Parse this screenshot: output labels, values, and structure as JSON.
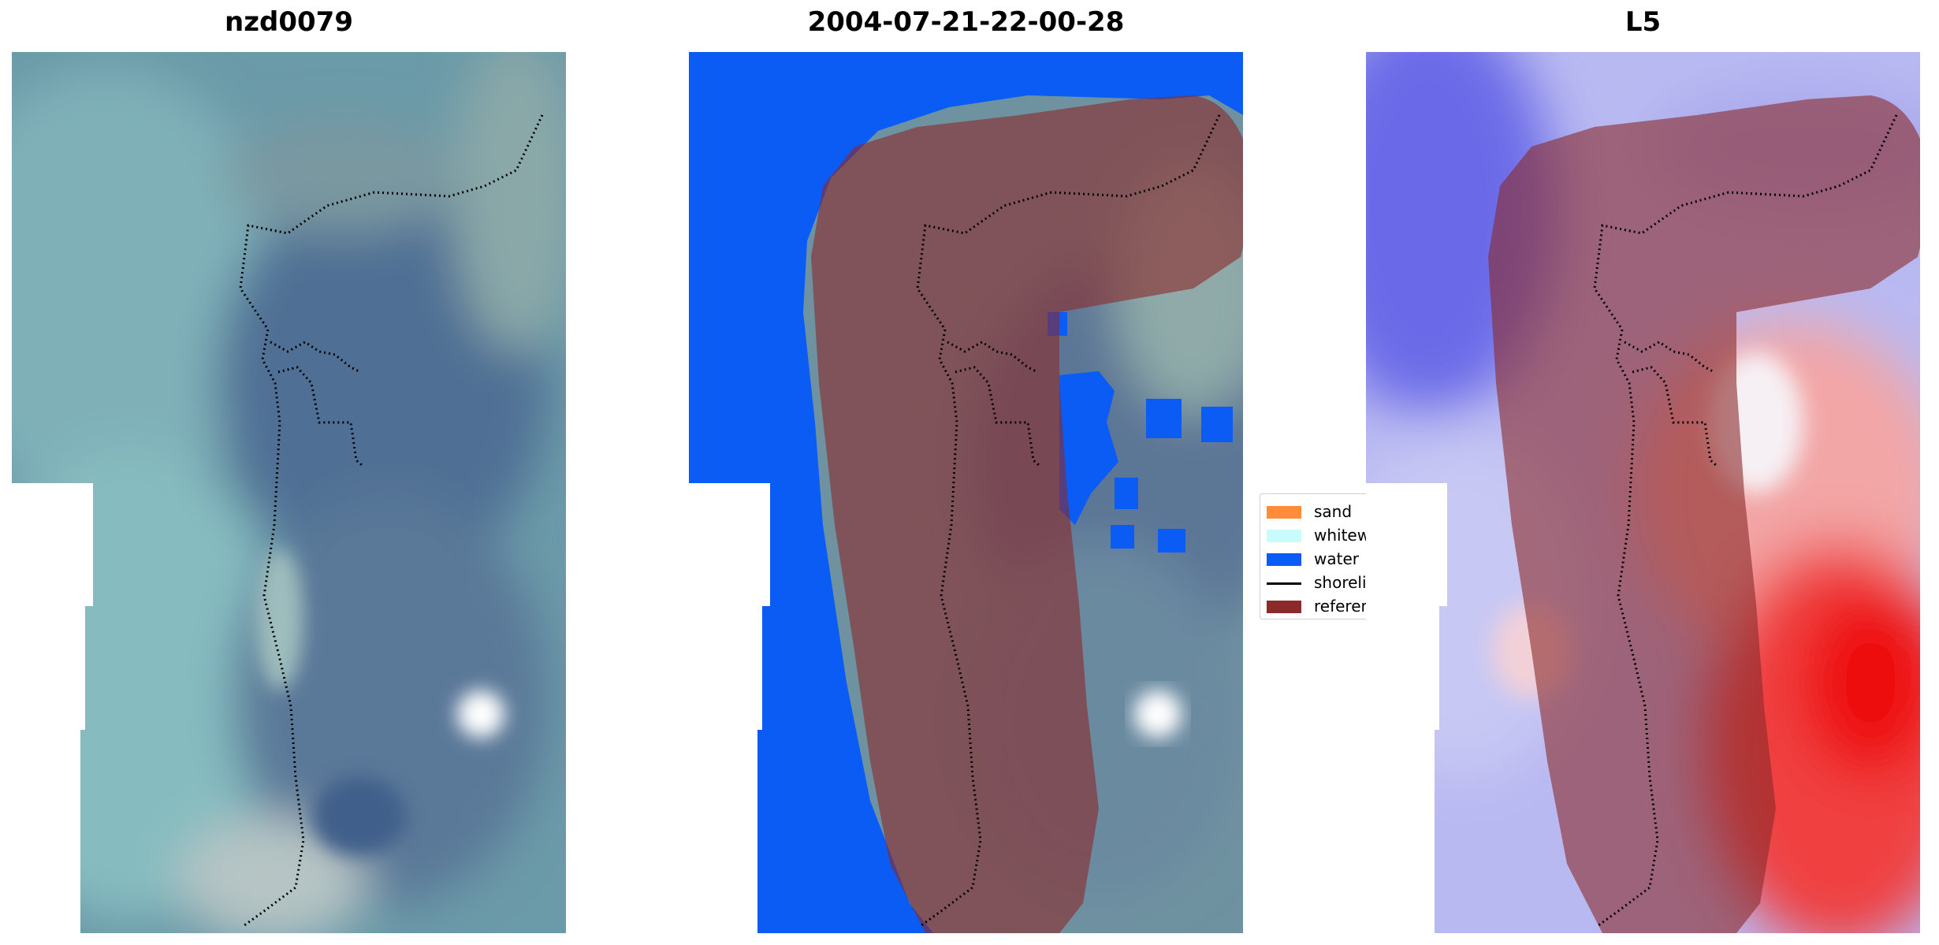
{
  "titles": {
    "left": "nzd0079",
    "middle": "2004-07-21-22-00-28",
    "right": "L5"
  },
  "legend": {
    "items": [
      {
        "label": "sand",
        "type": "patch",
        "color": "#ff8c3a"
      },
      {
        "label": "whitewater",
        "type": "patch",
        "color": "#c8fbfb"
      },
      {
        "label": "water",
        "type": "patch",
        "color": "#0a5cf5"
      },
      {
        "label": "shoreline",
        "type": "line",
        "color": "#000000"
      },
      {
        "label": "reference shoreline",
        "type": "patch",
        "color": "#8b2a2a"
      }
    ]
  },
  "colors": {
    "water_class": "#0a5cf5",
    "reference_buffer_overlay": "#8b2a2a",
    "shoreline": "#000000",
    "no_data": "#ffffff"
  }
}
